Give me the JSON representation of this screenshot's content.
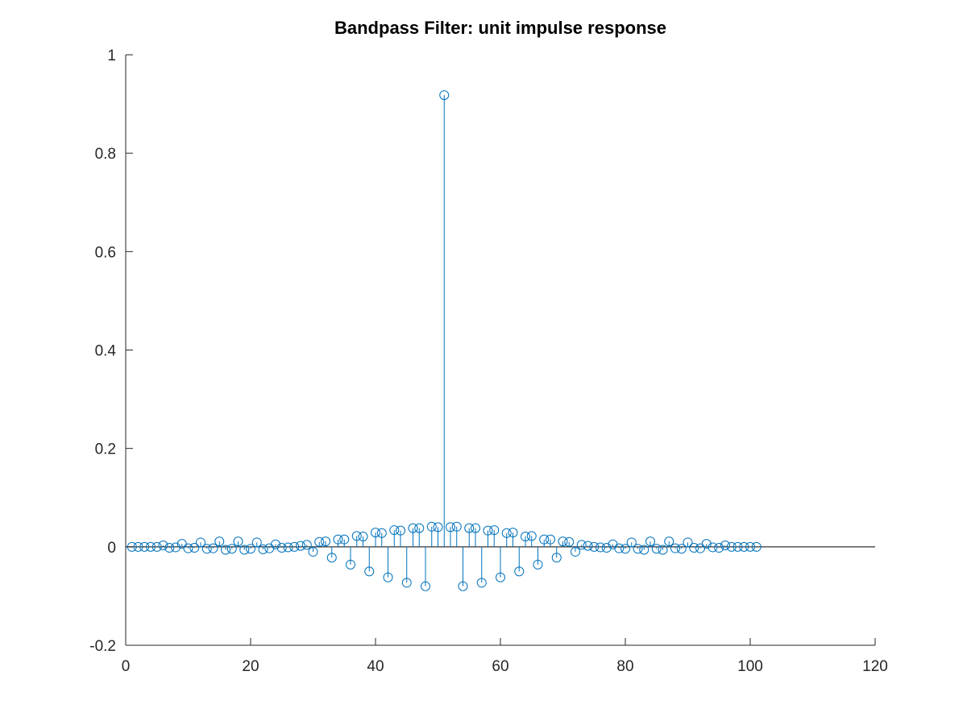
{
  "chart_data": {
    "type": "stem",
    "title": "Bandpass Filter: unit impulse response",
    "xlabel": "",
    "ylabel": "",
    "xlim": [
      0,
      120
    ],
    "ylim": [
      -0.2,
      1
    ],
    "xticks": [
      0,
      20,
      40,
      60,
      80,
      100,
      120
    ],
    "yticks": [
      -0.2,
      0,
      0.2,
      0.4,
      0.6,
      0.8,
      1
    ],
    "xtick_labels": [
      "0",
      "20",
      "40",
      "60",
      "80",
      "100",
      "120"
    ],
    "ytick_labels": [
      "-0.2",
      "0",
      "0.2",
      "0.4",
      "0.6",
      "0.8",
      "1"
    ],
    "grid": false,
    "baseline": 0,
    "series_color": "#0072BD",
    "marker": "circle-open",
    "x": [
      1,
      2,
      3,
      4,
      5,
      6,
      7,
      8,
      9,
      10,
      11,
      12,
      13,
      14,
      15,
      16,
      17,
      18,
      19,
      20,
      21,
      22,
      23,
      24,
      25,
      26,
      27,
      28,
      29,
      30,
      31,
      32,
      33,
      34,
      35,
      36,
      37,
      38,
      39,
      40,
      41,
      42,
      43,
      44,
      45,
      46,
      47,
      48,
      49,
      50,
      51,
      52,
      53,
      54,
      55,
      56,
      57,
      58,
      59,
      60,
      61,
      62,
      63,
      64,
      65,
      66,
      67,
      68,
      69,
      70,
      71,
      72,
      73,
      74,
      75,
      76,
      77,
      78,
      79,
      80,
      81,
      82,
      83,
      84,
      85,
      86,
      87,
      88,
      89,
      90,
      91,
      92,
      93,
      94,
      95,
      96,
      97,
      98,
      99,
      100,
      101
    ],
    "y": [
      0,
      0,
      0,
      0,
      0,
      0.003,
      -0.002,
      -0.001,
      0.006,
      -0.003,
      -0.002,
      0.009,
      -0.004,
      -0.003,
      0.011,
      -0.006,
      -0.004,
      0.011,
      -0.006,
      -0.004,
      0.009,
      -0.005,
      -0.003,
      0.005,
      -0.002,
      -0.001,
      0,
      0.002,
      0.004,
      -0.01,
      0.01,
      0.011,
      -0.022,
      0.015,
      0.015,
      -0.036,
      0.022,
      0.021,
      -0.05,
      0.029,
      0.028,
      -0.062,
      0.034,
      0.033,
      -0.073,
      0.038,
      0.038,
      -0.08,
      0.041,
      0.04,
      0.918,
      0.04,
      0.041,
      -0.08,
      0.038,
      0.038,
      -0.073,
      0.033,
      0.034,
      -0.062,
      0.028,
      0.029,
      -0.05,
      0.021,
      0.022,
      -0.036,
      0.015,
      0.015,
      -0.022,
      0.011,
      0.01,
      -0.01,
      0.004,
      0.002,
      0,
      -0.001,
      -0.002,
      0.005,
      -0.003,
      -0.004,
      0.009,
      -0.004,
      -0.006,
      0.011,
      -0.004,
      -0.006,
      0.011,
      -0.003,
      -0.004,
      0.009,
      -0.002,
      -0.003,
      0.006,
      -0.001,
      -0.002,
      0.003,
      0,
      0,
      0,
      0,
      0
    ]
  }
}
